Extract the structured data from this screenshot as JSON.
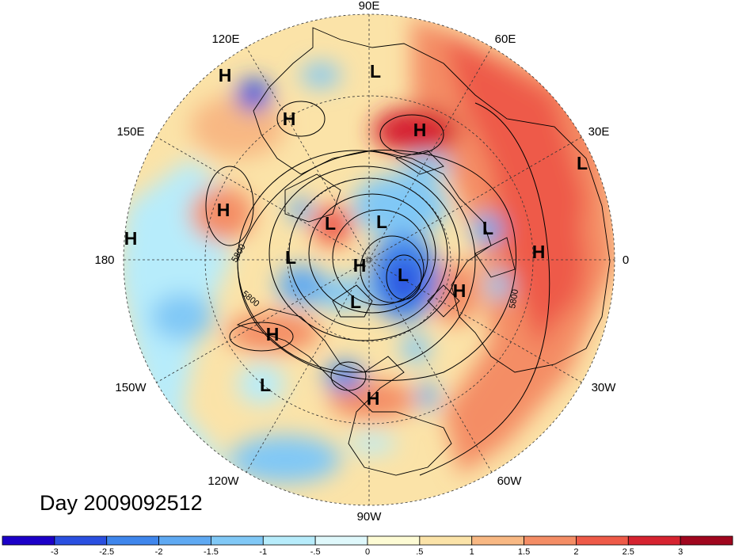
{
  "map": {
    "longitude_labels": [
      "90E",
      "60E",
      "30E",
      "0",
      "30W",
      "60W",
      "90W",
      "120W",
      "150W",
      "180",
      "150E",
      "120E"
    ],
    "pressure_centers": [
      {
        "type": "H",
        "region": "east-siberia"
      },
      {
        "type": "L",
        "region": "north-siberia"
      },
      {
        "type": "H",
        "region": "chukotka"
      },
      {
        "type": "H",
        "region": "urals"
      },
      {
        "type": "L",
        "region": "central-asia-east"
      },
      {
        "type": "H",
        "region": "bering-sea"
      },
      {
        "type": "H",
        "region": "north-pacific-west"
      },
      {
        "type": "L",
        "region": "arctic-east"
      },
      {
        "type": "L",
        "region": "arctic"
      },
      {
        "type": "L",
        "region": "scandinavia"
      },
      {
        "type": "H",
        "region": "europe"
      },
      {
        "type": "L",
        "region": "alaska"
      },
      {
        "type": "H",
        "region": "arctic-ocean"
      },
      {
        "type": "L",
        "region": "baffin"
      },
      {
        "type": "L",
        "region": "hudson-bay"
      },
      {
        "type": "H",
        "region": "north-atlantic"
      },
      {
        "type": "H",
        "region": "gulf-of-alaska"
      },
      {
        "type": "L",
        "region": "north-pacific-east"
      },
      {
        "type": "H",
        "region": "gulf-of-mexico"
      }
    ],
    "contour_labels": [
      "5800",
      "5800",
      "5800"
    ]
  },
  "date_label": "Day 2009092512",
  "colorbar": {
    "tick_labels": [
      "-3",
      "-2.5",
      "-2",
      "-1.5",
      "-1",
      "-.5",
      "0",
      ".5",
      "1",
      "1.5",
      "2",
      "2.5",
      "3"
    ],
    "colors": [
      "#1c00c8",
      "#2a4fe0",
      "#3f86ec",
      "#5fa9f2",
      "#80c8f6",
      "#b7ecfb",
      "#dff8fb",
      "#fdfbd4",
      "#fbe3a8",
      "#f8b883",
      "#f48d65",
      "#ee5a48",
      "#d62330",
      "#a0061e"
    ]
  }
}
